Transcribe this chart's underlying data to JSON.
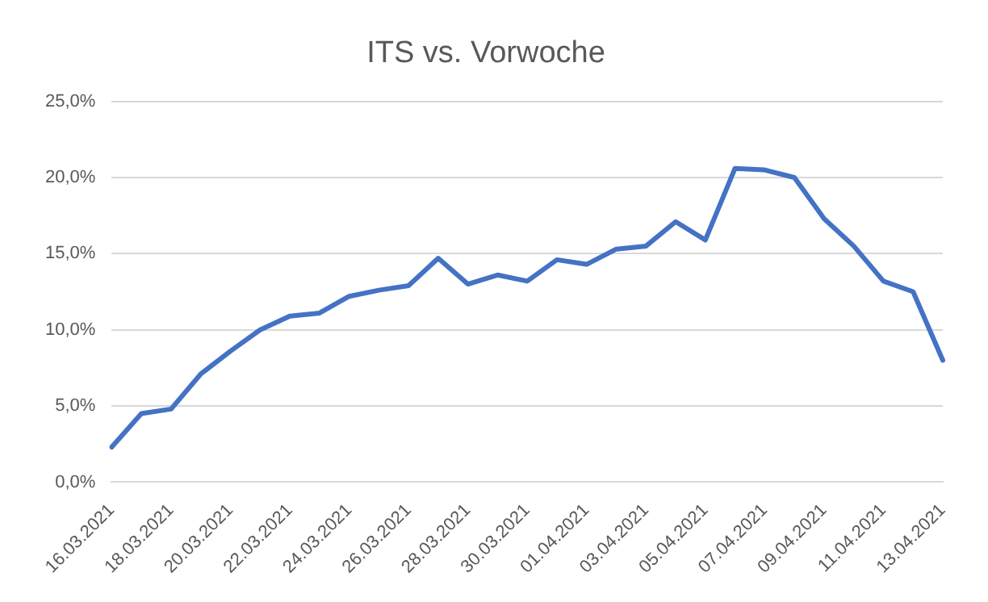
{
  "chart_data": {
    "type": "line",
    "title": "ITS vs. Vorwoche",
    "categories": [
      "16.03.2021",
      null,
      "18.03.2021",
      null,
      "20.03.2021",
      null,
      "22.03.2021",
      null,
      "24.03.2021",
      null,
      "26.03.2021",
      null,
      "28.03.2021",
      null,
      "30.03.2021",
      null,
      "01.04.2021",
      null,
      "03.04.2021",
      null,
      "05.04.2021",
      null,
      "07.04.2021",
      null,
      "09.04.2021",
      null,
      "11.04.2021",
      null,
      "13.04.2021"
    ],
    "series": [
      {
        "color": "#4472c4",
        "values": [
          2.3,
          4.5,
          4.8,
          7.1,
          8.6,
          10.0,
          10.9,
          11.1,
          12.2,
          12.6,
          12.9,
          14.7,
          13.0,
          13.6,
          13.2,
          14.6,
          14.3,
          15.3,
          15.5,
          17.1,
          15.9,
          20.6,
          20.5,
          20.0,
          17.3,
          15.5,
          13.2,
          12.5,
          8.0
        ]
      }
    ],
    "ylim": [
      0,
      25
    ],
    "yticks": [
      {
        "value": 0,
        "label": "0,0%"
      },
      {
        "value": 5,
        "label": "5,0%"
      },
      {
        "value": 10,
        "label": "10,0%"
      },
      {
        "value": 15,
        "label": "15,0%"
      },
      {
        "value": 20,
        "label": "20,0%"
      },
      {
        "value": 25,
        "label": "25,0%"
      }
    ],
    "grid": "y",
    "legend": false,
    "marker": "none",
    "line_style": "solid"
  }
}
